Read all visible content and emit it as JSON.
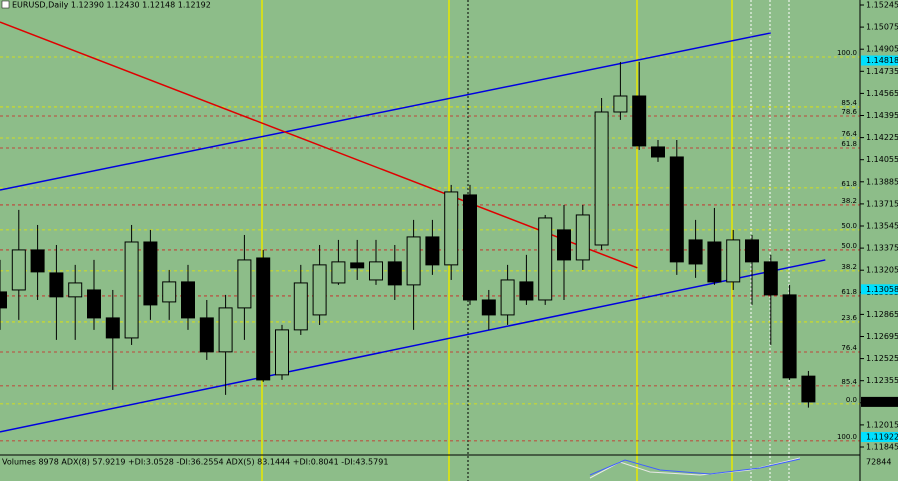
{
  "chart_data": {
    "type": "candlestick",
    "title": "EURUSD,Daily  1.12390 1.12430 1.12148 1.12192",
    "indicator_text": "Volumes 8978 ADX(8) 57.9219 +DI:3.0528 -DI:36.2554 ADX(5) 83.1444 +DI:0.8041 -DI:43.5791",
    "indicator_value": "72844",
    "ylim": [
      1.11845,
      1.15245
    ],
    "yticks": [
      1.15245,
      1.15075,
      1.14905,
      1.14735,
      1.14565,
      1.14395,
      1.14225,
      1.14055,
      1.13885,
      1.13715,
      1.13545,
      1.13375,
      1.13205,
      1.13035,
      1.12865,
      1.12695,
      1.12525,
      1.12355,
      1.12185,
      1.12015,
      1.11845
    ],
    "price_marks": [
      1.14818,
      1.13058,
      1.12192,
      1.11922
    ],
    "bull_color": "#8dbd89",
    "bear_color": "#000000",
    "open": [
      1.13038,
      1.13053,
      1.13361,
      1.13184,
      1.13,
      1.13053,
      1.12838,
      1.12684,
      1.13422,
      1.12961,
      1.13115,
      1.12838,
      1.12577,
      1.12915,
      1.13299,
      1.124,
      1.12746,
      1.12861,
      1.13107,
      1.13261,
      1.1313,
      1.13269,
      1.13092,
      1.13461,
      1.13246,
      1.13784,
      1.12976,
      1.12861,
      1.13115,
      1.12976,
      1.13515,
      1.13284,
      1.13399,
      1.14422,
      1.14545,
      1.14153,
      1.14076,
      1.13438,
      1.13422,
      1.13115,
      1.13438,
      1.13269,
      1.13015,
      1.1239
    ],
    "high": [
      1.13284,
      1.13669,
      1.13553,
      1.13399,
      1.13246,
      1.13284,
      1.13053,
      1.13553,
      1.13515,
      1.13207,
      1.13246,
      1.12976,
      1.13015,
      1.13476,
      1.13361,
      1.12784,
      1.13246,
      1.13399,
      1.13438,
      1.13438,
      1.13438,
      1.13399,
      1.13592,
      1.13592,
      1.13861,
      1.13861,
      1.13053,
      1.13246,
      1.13323,
      1.1363,
      1.13707,
      1.13707,
      1.1453,
      1.14807,
      1.14807,
      1.14207,
      1.14207,
      1.13592,
      1.13684,
      1.13515,
      1.13476,
      1.13323,
      1.13092,
      1.1243
    ],
    "low": [
      1.12746,
      1.12823,
      1.12976,
      1.12669,
      1.12669,
      1.12746,
      1.12284,
      1.1263,
      1.12823,
      1.12823,
      1.12746,
      1.12515,
      1.12246,
      1.12669,
      1.12346,
      1.12361,
      1.12707,
      1.12784,
      1.13092,
      1.1313,
      1.13092,
      1.12976,
      1.12746,
      1.13169,
      1.1313,
      1.12938,
      1.12746,
      1.12784,
      1.12938,
      1.12938,
      1.12976,
      1.13207,
      1.13361,
      1.14361,
      1.1413,
      1.14038,
      1.13169,
      1.13146,
      1.13092,
      1.13053,
      1.12938,
      1.1263,
      1.12361,
      1.12148
    ],
    "close": [
      1.12915,
      1.13361,
      1.13192,
      1.13,
      1.13107,
      1.12838,
      1.12684,
      1.13422,
      1.12938,
      1.13115,
      1.12838,
      1.12577,
      1.12915,
      1.13284,
      1.12361,
      1.12746,
      1.13107,
      1.13246,
      1.13269,
      1.13223,
      1.13269,
      1.13092,
      1.13461,
      1.13246,
      1.13807,
      1.12976,
      1.12861,
      1.1313,
      1.12976,
      1.13607,
      1.13284,
      1.1363,
      1.14422,
      1.14545,
      1.14161,
      1.14076,
      1.13269,
      1.13253,
      1.13115,
      1.13438,
      1.13269,
      1.13015,
      1.12377,
      1.12192
    ],
    "fib_levels": [
      {
        "label": "100.0",
        "value": 1.14845,
        "color": "#e8e800"
      },
      {
        "label": "85.4",
        "value": 1.14461,
        "color": "#e8e800"
      },
      {
        "label": "78.6",
        "value": 1.14391,
        "color": "#d02020"
      },
      {
        "label": "76.4",
        "value": 1.14222,
        "color": "#e8e800"
      },
      {
        "label": "61.8",
        "value": 1.14145,
        "color": "#d02020"
      },
      {
        "label": "61.8",
        "value": 1.13838,
        "color": "#e8e800"
      },
      {
        "label": "38.2",
        "value": 1.13707,
        "color": "#d02020"
      },
      {
        "label": "50.0",
        "value": 1.13515,
        "color": "#e8e800"
      },
      {
        "label": "50.0",
        "value": 1.13361,
        "color": "#d02020"
      },
      {
        "label": "38.2",
        "value": 1.132,
        "color": "#e8e800"
      },
      {
        "label": "61.8",
        "value": 1.13007,
        "color": "#d02020"
      },
      {
        "label": "23.6",
        "value": 1.12807,
        "color": "#e8e800"
      },
      {
        "label": "76.4",
        "value": 1.12576,
        "color": "#d02020"
      },
      {
        "label": "85.4",
        "value": 1.12315,
        "color": "#d02020"
      },
      {
        "label": "0.0",
        "value": 1.12177,
        "color": "#e8e800"
      },
      {
        "label": "100.0",
        "value": 1.11892,
        "color": "#d02020"
      }
    ],
    "trendlines": [
      {
        "color": "#0000e0",
        "from": [
          0,
          1.13822
        ],
        "to": [
          41,
          1.1503
        ]
      },
      {
        "color": "#0000e0",
        "from": [
          0,
          1.11961
        ],
        "to": [
          43.9,
          1.13284
        ]
      },
      {
        "color": "#e00000",
        "from": [
          0,
          1.15114
        ],
        "to": [
          33.9,
          1.13223
        ]
      }
    ]
  }
}
